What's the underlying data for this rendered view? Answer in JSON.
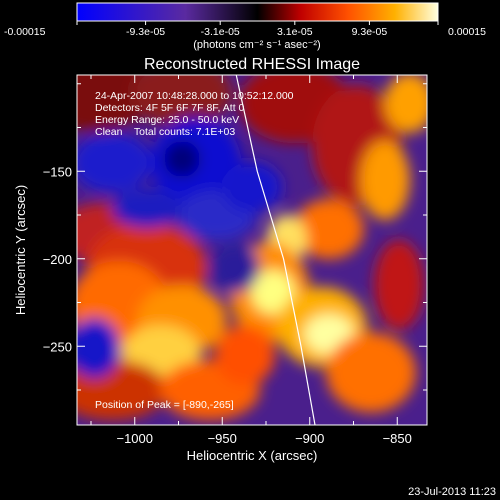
{
  "colorbar": {
    "ticks": [
      "-0.00015",
      "-9.3e-05",
      "-3.1e-05",
      "3.1e-05",
      "9.3e-05",
      "0.00015"
    ],
    "unit_label": "(photons cm⁻² s⁻¹ asec⁻²)",
    "range": [
      -0.00015,
      0.00015
    ]
  },
  "chart_data": {
    "type": "heatmap",
    "title": "Reconstructed RHESSI Image",
    "xlabel": "Heliocentric X (arcsec)",
    "ylabel": "Heliocentric Y (arcsec)",
    "xlim": [
      -1033,
      -833
    ],
    "ylim": [
      -295,
      -95
    ],
    "x_ticks": [
      -1000,
      -950,
      -900,
      -850
    ],
    "y_ticks": [
      -150,
      -200,
      -250
    ],
    "x_tick_labels": [
      "−1000",
      "−950",
      "−900",
      "−850"
    ],
    "y_tick_labels": [
      "−150",
      "−200",
      "−250"
    ],
    "annotations": [
      "24-Apr-2007 10:48:28.000 to 10:52:12.000",
      "Detectors: 4F 5F 6F 7F 8F, Att 0",
      "Energy Range: 25.0 - 50.0 keV",
      "Clean    Total counts: 7.1E+03"
    ],
    "peak_label": "Position of Peak = [-890,-265]",
    "peak": [
      -890,
      -265
    ],
    "limb_curve": [
      [
        -942,
        -95
      ],
      [
        -930,
        -150
      ],
      [
        -915,
        -200
      ],
      [
        -905,
        -250
      ],
      [
        -897,
        -295
      ]
    ]
  },
  "timestamp": "23-Jul-2013 11:23"
}
